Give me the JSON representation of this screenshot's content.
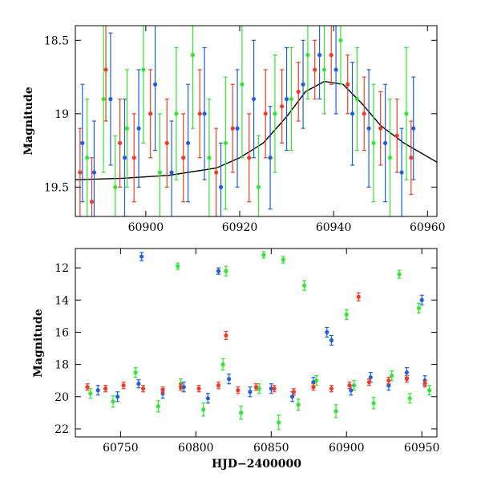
{
  "chart_data": [
    {
      "id": "top",
      "type": "scatter",
      "title": "",
      "xlabel": "",
      "ylabel": "Magnitude",
      "xlim": [
        60885,
        60962
      ],
      "ylim": [
        19.7,
        18.4
      ],
      "y_inverted": true,
      "xticks": [
        60900,
        60920,
        60940,
        60960
      ],
      "xtick_labels": [
        "60900",
        "60920",
        "60940",
        "60960"
      ],
      "yticks": [
        18.5,
        19,
        19.5
      ],
      "ytick_labels": [
        "18.5",
        "19",
        "19.5"
      ],
      "model_curve": {
        "name": "model",
        "color": "#000000",
        "x": [
          60885,
          60895,
          60905,
          60915,
          60920,
          60925,
          60930,
          60934,
          60938,
          60942,
          60946,
          60950,
          60955,
          60962
        ],
        "y": [
          19.45,
          19.44,
          19.42,
          19.37,
          19.3,
          19.2,
          19.02,
          18.85,
          18.78,
          18.8,
          18.93,
          19.08,
          19.2,
          19.33
        ]
      },
      "series": [
        {
          "name": "green",
          "color": "#33e633",
          "x": [
            60887.5,
            60891.0,
            60893.5,
            60896.0,
            60899.5,
            60903.0,
            60906.5,
            60910.0,
            60913.5,
            60917.0,
            60920.5,
            60924.0,
            60927.5,
            60931.0,
            60934.5,
            60938.0,
            60941.5,
            60945.0,
            60948.5,
            60952.0,
            60955.5
          ],
          "y": [
            19.3,
            18.9,
            19.5,
            19.1,
            18.7,
            19.4,
            19.0,
            18.6,
            19.3,
            19.2,
            18.8,
            19.5,
            19.0,
            18.9,
            18.6,
            18.7,
            18.5,
            18.9,
            19.2,
            19.3,
            19.0
          ],
          "err": [
            0.4,
            0.5,
            0.35,
            0.4,
            0.5,
            0.4,
            0.45,
            0.5,
            0.4,
            0.45,
            0.5,
            0.35,
            0.4,
            0.35,
            0.3,
            0.3,
            0.3,
            0.35,
            0.4,
            0.4,
            0.45
          ]
        },
        {
          "name": "blue",
          "color": "#1f5fe0",
          "x": [
            60886.5,
            60889.0,
            60892.5,
            60895.5,
            60898.5,
            60902.0,
            60905.5,
            60909.0,
            60912.5,
            60916.0,
            60919.5,
            60923.0,
            60926.5,
            60930.0,
            60933.5,
            60937.0,
            60940.5,
            60944.0,
            60947.5,
            60951.0,
            60954.5,
            60957.0
          ],
          "y": [
            19.2,
            19.4,
            18.9,
            19.3,
            19.1,
            18.8,
            19.4,
            19.2,
            19.0,
            19.5,
            19.1,
            18.9,
            19.3,
            18.9,
            18.8,
            18.6,
            18.7,
            19.0,
            19.1,
            19.2,
            19.4,
            19.1
          ],
          "err": [
            0.4,
            0.35,
            0.45,
            0.4,
            0.4,
            0.45,
            0.35,
            0.4,
            0.45,
            0.3,
            0.4,
            0.4,
            0.35,
            0.35,
            0.3,
            0.3,
            0.3,
            0.35,
            0.4,
            0.4,
            0.3,
            0.35
          ]
        },
        {
          "name": "red",
          "color": "#f03c28",
          "x": [
            60886.0,
            60888.5,
            60891.5,
            60894.5,
            60897.5,
            60901.0,
            60904.5,
            60908.0,
            60911.5,
            60915.0,
            60918.5,
            60922.0,
            60925.5,
            60929.0,
            60932.5,
            60936.0,
            60939.5,
            60943.0,
            60946.5,
            60950.0,
            60953.5,
            60956.5
          ],
          "y": [
            19.4,
            19.6,
            18.7,
            19.2,
            19.3,
            19.0,
            19.2,
            19.3,
            19.0,
            19.4,
            19.1,
            19.3,
            19.0,
            18.95,
            18.85,
            18.7,
            18.6,
            18.8,
            19.0,
            19.1,
            19.15,
            19.3
          ],
          "err": [
            0.3,
            0.3,
            0.35,
            0.3,
            0.3,
            0.3,
            0.3,
            0.3,
            0.3,
            0.3,
            0.3,
            0.3,
            0.3,
            0.25,
            0.2,
            0.2,
            0.2,
            0.2,
            0.25,
            0.25,
            0.25,
            0.25
          ]
        }
      ]
    },
    {
      "id": "bottom",
      "type": "scatter",
      "title": "",
      "xlabel": "HJD−2400000",
      "ylabel": "Magnitude",
      "xlim": [
        60720,
        60960
      ],
      "ylim": [
        22.5,
        10.8
      ],
      "y_inverted": true,
      "xticks": [
        60750,
        60800,
        60850,
        60900,
        60950
      ],
      "xtick_labels": [
        "60750",
        "60800",
        "60850",
        "60900",
        "60950"
      ],
      "yticks": [
        12,
        14,
        16,
        18,
        20,
        22
      ],
      "ytick_labels": [
        "12",
        "14",
        "16",
        "18",
        "20",
        "22"
      ],
      "series": [
        {
          "name": "green",
          "color": "#33e633",
          "x": [
            60730,
            60745,
            60760,
            60775,
            60790,
            60805,
            60818,
            60830,
            60842,
            60855,
            60868,
            60880,
            60893,
            60905,
            60918,
            60930,
            60942,
            60955,
            60788,
            60820,
            60845,
            60858,
            60872,
            60900,
            60935,
            60948
          ],
          "y": [
            19.8,
            20.3,
            18.5,
            20.6,
            19.2,
            20.8,
            18.0,
            21.0,
            19.5,
            21.6,
            20.5,
            19.0,
            20.9,
            19.3,
            20.4,
            18.7,
            20.1,
            19.6,
            11.9,
            12.2,
            11.2,
            11.5,
            13.1,
            14.9,
            12.4,
            14.5
          ],
          "err": [
            0.3,
            0.35,
            0.3,
            0.35,
            0.3,
            0.4,
            0.35,
            0.4,
            0.3,
            0.45,
            0.35,
            0.3,
            0.4,
            0.3,
            0.35,
            0.3,
            0.3,
            0.3,
            0.2,
            0.3,
            0.2,
            0.2,
            0.3,
            0.3,
            0.25,
            0.3
          ]
        },
        {
          "name": "blue",
          "color": "#1f5fe0",
          "x": [
            60735,
            60748,
            60762,
            60778,
            60792,
            60808,
            60822,
            60836,
            60850,
            60864,
            60878,
            60890,
            60903,
            60916,
            60928,
            60940,
            60952,
            60764,
            60815,
            60887,
            60950
          ],
          "y": [
            19.6,
            20.0,
            19.2,
            19.8,
            19.4,
            20.1,
            18.9,
            19.7,
            19.5,
            20.0,
            19.1,
            16.5,
            19.6,
            18.8,
            19.3,
            18.5,
            19.0,
            11.3,
            12.2,
            16.0,
            14.0
          ],
          "err": [
            0.3,
            0.3,
            0.25,
            0.3,
            0.3,
            0.3,
            0.3,
            0.3,
            0.3,
            0.3,
            0.3,
            0.3,
            0.3,
            0.3,
            0.3,
            0.3,
            0.3,
            0.25,
            0.2,
            0.3,
            0.3
          ]
        },
        {
          "name": "red",
          "color": "#f03c28",
          "x": [
            60728,
            60740,
            60752,
            60765,
            60778,
            60790,
            60802,
            60815,
            60828,
            60840,
            60852,
            60865,
            60878,
            60890,
            60902,
            60915,
            60928,
            60940,
            60952,
            60908,
            60820
          ],
          "y": [
            19.4,
            19.5,
            19.3,
            19.5,
            19.6,
            19.4,
            19.5,
            19.3,
            19.6,
            19.4,
            19.5,
            19.7,
            19.4,
            19.5,
            19.3,
            19.1,
            19.0,
            18.9,
            19.2,
            13.8,
            16.2
          ],
          "err": [
            0.2,
            0.2,
            0.2,
            0.2,
            0.2,
            0.2,
            0.2,
            0.2,
            0.2,
            0.2,
            0.2,
            0.2,
            0.2,
            0.2,
            0.2,
            0.2,
            0.2,
            0.2,
            0.2,
            0.25,
            0.25
          ]
        }
      ]
    }
  ]
}
